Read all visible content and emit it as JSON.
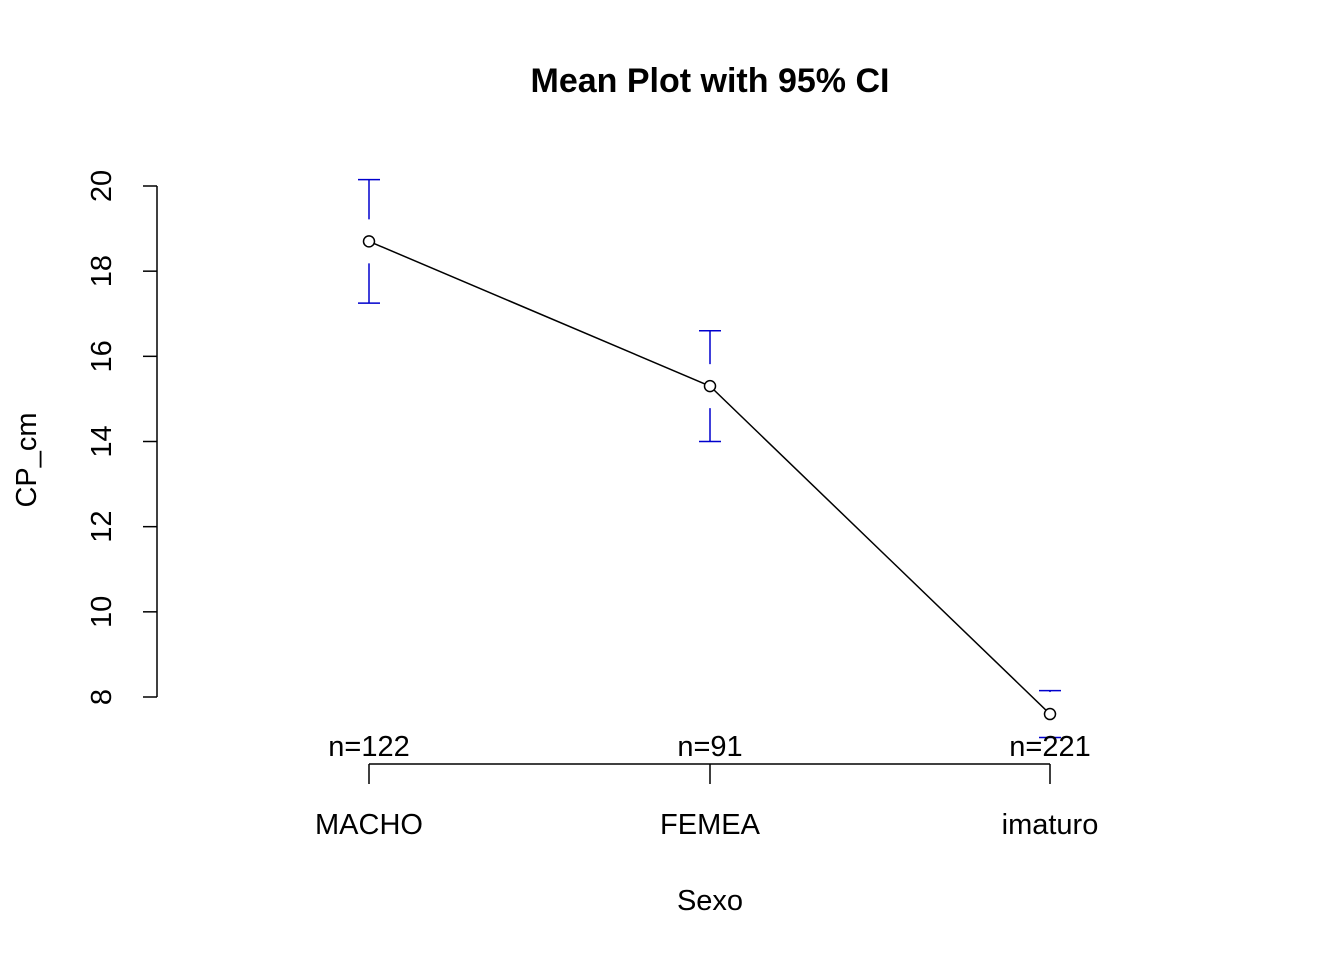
{
  "chart_data": {
    "type": "line",
    "title": "Mean Plot with 95% CI",
    "xlabel": "Sexo",
    "ylabel": "CP_cm",
    "categories": [
      "MACHO",
      "FEMEA",
      "imaturo"
    ],
    "means": [
      18.7,
      15.3,
      7.6
    ],
    "ci_lower": [
      17.25,
      14.0,
      7.05
    ],
    "ci_upper": [
      20.15,
      16.6,
      8.15
    ],
    "n_labels": [
      "n=122",
      "n=91",
      "n=221"
    ],
    "y_ticks": [
      8,
      10,
      12,
      14,
      16,
      18,
      20
    ],
    "y_tick_labels": [
      "8",
      "10",
      "12",
      "14",
      "16",
      "18",
      "20"
    ],
    "ylim": [
      8,
      20
    ],
    "grid": false,
    "colors": {
      "ci": "#0000cd",
      "line": "#000000"
    }
  }
}
